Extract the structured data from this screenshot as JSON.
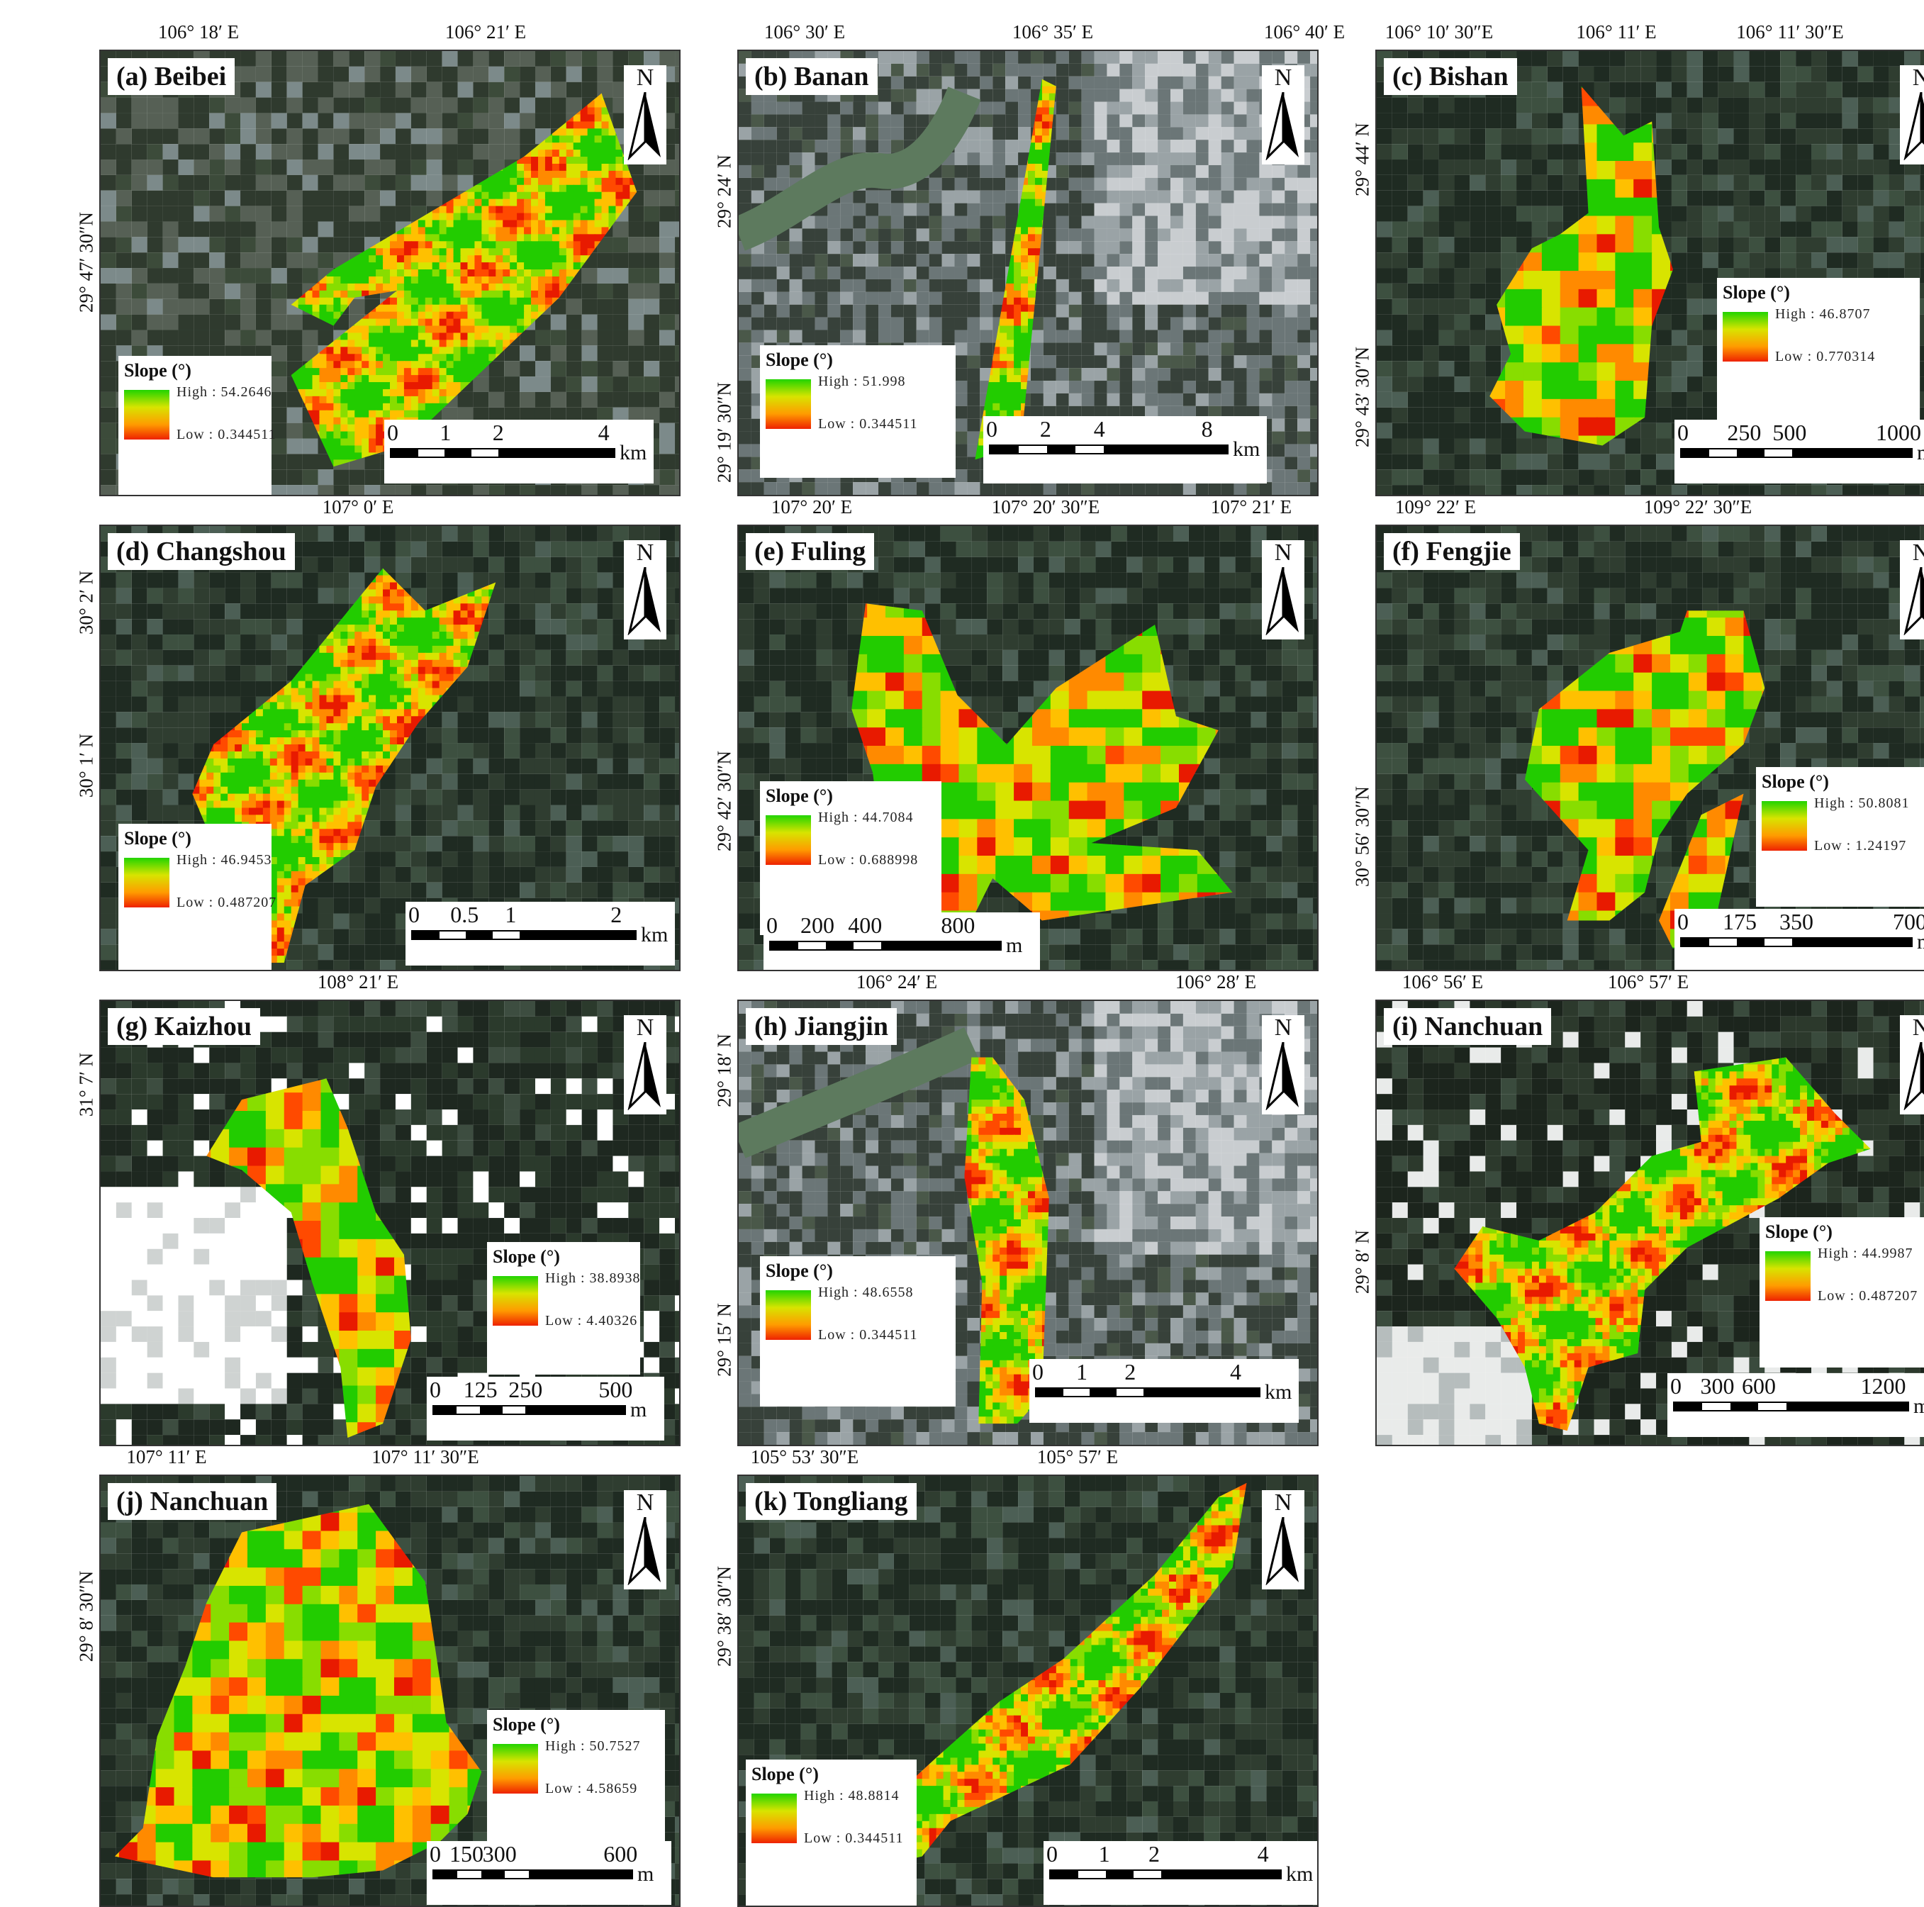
{
  "legend_title": "Slope (°)",
  "north_label": "N",
  "panels": [
    {
      "id": "a",
      "title": "(a) Beibei",
      "top_labels": [
        "106° 18′ E",
        "106° 21′ E"
      ],
      "left_labels": [
        "29° 47′ 30″N"
      ],
      "high": "High : 54.2646",
      "low": "Low : 0.344511",
      "scale_ticks": [
        "0",
        "1",
        "2",
        "4"
      ],
      "scale_unit": "km"
    },
    {
      "id": "b",
      "title": "(b) Banan",
      "top_labels": [
        "106° 30′ E",
        "106° 35′ E",
        "106° 40′ E"
      ],
      "left_labels": [
        "29° 24′ N",
        "29° 19′ 30″N"
      ],
      "high": "High : 51.998",
      "low": "Low : 0.344511",
      "scale_ticks": [
        "0",
        "2",
        "4",
        "8"
      ],
      "scale_unit": "km"
    },
    {
      "id": "c",
      "title": "(c) Bishan",
      "top_labels": [
        "106° 10′ 30″E",
        "106° 11′ E",
        "106° 11′ 30″E"
      ],
      "left_labels": [
        "29° 44′ N",
        "29° 43′ 30″N"
      ],
      "high": "High : 46.8707",
      "low": "Low : 0.770314",
      "scale_ticks": [
        "0",
        "250",
        "500",
        "1000"
      ],
      "scale_unit": "m"
    },
    {
      "id": "d",
      "title": "(d) Changshou",
      "top_labels": [
        "107° 0′ E"
      ],
      "left_labels": [
        "30° 2′ N",
        "30° 1′ N"
      ],
      "high": "High : 46.9453",
      "low": "Low : 0.487207",
      "scale_ticks": [
        "0",
        "0.5",
        "1",
        "2"
      ],
      "scale_unit": "km"
    },
    {
      "id": "e",
      "title": "(e) Fuling",
      "top_labels": [
        "107° 20′ E",
        "107° 20′ 30″E",
        "107° 21′ E"
      ],
      "left_labels": [
        "29° 42′ 30″N"
      ],
      "high": "High : 44.7084",
      "low": "Low : 0.688998",
      "scale_ticks": [
        "0",
        "200",
        "400",
        "800"
      ],
      "scale_unit": "m"
    },
    {
      "id": "f",
      "title": "(f) Fengjie",
      "top_labels": [
        "109° 22′ E",
        "109° 22′ 30″E"
      ],
      "left_labels": [
        "30° 56′ 30″N"
      ],
      "high": "High : 50.8081",
      "low": "Low : 1.24197",
      "scale_ticks": [
        "0",
        "175",
        "350",
        "700"
      ],
      "scale_unit": "m"
    },
    {
      "id": "g",
      "title": "(g) Kaizhou",
      "top_labels": [
        "108° 21′ E"
      ],
      "left_labels": [
        "31° 7′ N"
      ],
      "high": "High : 38.8938",
      "low": "Low : 4.40326",
      "scale_ticks": [
        "0",
        "125",
        "250",
        "500"
      ],
      "scale_unit": "m"
    },
    {
      "id": "h",
      "title": "(h) Jiangjin",
      "top_labels": [
        "106° 24′ E",
        "106° 28′ E"
      ],
      "left_labels": [
        "29° 18′ N",
        "29° 15′ N"
      ],
      "high": "High : 48.6558",
      "low": "Low : 0.344511",
      "scale_ticks": [
        "0",
        "1",
        "2",
        "4"
      ],
      "scale_unit": "km"
    },
    {
      "id": "i",
      "title": "(i) Nanchuan",
      "top_labels": [
        "106° 56′ E",
        "106° 57′ E"
      ],
      "left_labels": [
        "29° 8′ N"
      ],
      "high": "High : 44.9987",
      "low": "Low : 0.487207",
      "scale_ticks": [
        "0",
        "300",
        "600",
        "1200"
      ],
      "scale_unit": "m"
    },
    {
      "id": "j",
      "title": "(j) Nanchuan",
      "top_labels": [
        "107° 11′ E",
        "107° 11′ 30″E"
      ],
      "left_labels": [
        "29° 8′ 30″N"
      ],
      "high": "High : 50.7527",
      "low": "Low : 4.58659",
      "scale_ticks": [
        "0",
        "150",
        "300",
        "600"
      ],
      "scale_unit": "m"
    },
    {
      "id": "k",
      "title": "(k) Tongliang",
      "top_labels": [
        "105° 53′ 30″E",
        "105° 57′ E"
      ],
      "left_labels": [
        "29° 38′ 30″N"
      ],
      "high": "High : 48.8814",
      "low": "Low : 0.344511",
      "scale_ticks": [
        "0",
        "1",
        "2",
        "4"
      ],
      "scale_unit": "km"
    }
  ]
}
